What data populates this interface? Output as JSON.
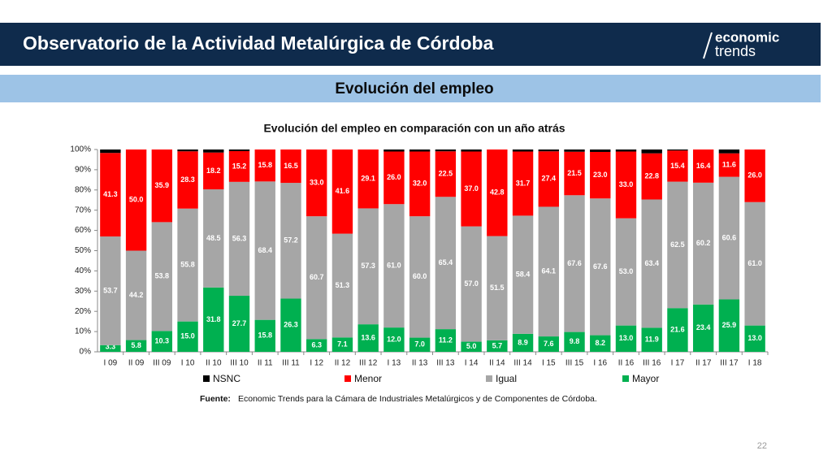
{
  "header": {
    "title": "Observatorio de la Actividad Metalúrgica de Córdoba",
    "logo": [
      "economic",
      "trends"
    ]
  },
  "section_title": "Evolución del empleo",
  "chart_data": {
    "type": "stacked_bar",
    "title": "Evolución del empleo en comparación con un año atrás",
    "categories": [
      "I 09",
      "II 09",
      "III 09",
      "I 10",
      "II 10",
      "III 10",
      "II 11",
      "III 11",
      "I 12",
      "II 12",
      "III 12",
      "I 13",
      "II 13",
      "III 13",
      "I 14",
      "II 14",
      "III 14",
      "I 15",
      "III 15",
      "I 16",
      "II 16",
      "III 16",
      "I 17",
      "II 17",
      "III 17",
      "I 18"
    ],
    "series": [
      {
        "name": "NSNC",
        "color": "#000000",
        "values": [
          1.7,
          0,
          0,
          0.9,
          1.5,
          0.8,
          0,
          0,
          0,
          0,
          0,
          1.0,
          1.0,
          0.9,
          1.0,
          0,
          1.0,
          0.9,
          1.1,
          1.2,
          1.0,
          1.9,
          0.5,
          0,
          1.9,
          0
        ]
      },
      {
        "name": "Menor",
        "color": "#ff0000",
        "values": [
          41.3,
          50.0,
          35.9,
          28.3,
          18.2,
          15.2,
          15.8,
          16.5,
          33.0,
          41.6,
          29.1,
          26.0,
          32.0,
          22.5,
          37.0,
          42.8,
          31.7,
          27.4,
          21.5,
          23.0,
          33.0,
          22.8,
          15.4,
          16.4,
          11.6,
          26.0
        ],
        "value_labels": [
          "41.3",
          "50.0",
          "35.9",
          "28.3",
          "18.2",
          "15.2",
          "15.8",
          "16.5",
          "33.0",
          "41.6",
          "29.1",
          "26.0",
          "32.0",
          "22.5",
          "37.0",
          "42.8",
          "31.7",
          "27.4",
          "21.5",
          "23.0",
          "33.0",
          "22.8",
          "15.4",
          "16.4",
          "11.6",
          "26.0"
        ]
      },
      {
        "name": "Igual",
        "color": "#a6a6a6",
        "values": [
          53.7,
          44.2,
          53.8,
          55.8,
          48.5,
          56.3,
          68.4,
          57.2,
          60.7,
          51.3,
          57.3,
          61.0,
          60.0,
          65.4,
          57.0,
          51.5,
          58.4,
          64.1,
          67.6,
          67.6,
          53.0,
          63.4,
          62.5,
          60.2,
          60.6,
          61.0
        ],
        "value_labels": [
          "53.7",
          "44.2",
          "53.8",
          "55.8",
          "48.5",
          "56.3",
          "68.4",
          "57.2",
          "60.7",
          "51.3",
          "57.3",
          "61.0",
          "60.0",
          "65.4",
          "57.0",
          "51.5",
          "58.4",
          "64.1",
          "67.6",
          "67.6",
          "53.0",
          "63.4",
          "62.5",
          "60.2",
          "60.6",
          "61.0"
        ]
      },
      {
        "name": "Mayor",
        "color": "#00b050",
        "values": [
          3.3,
          5.8,
          10.3,
          15.0,
          31.8,
          27.7,
          15.8,
          26.3,
          6.3,
          7.1,
          13.6,
          12.0,
          7.0,
          11.2,
          5.0,
          5.7,
          8.9,
          7.6,
          9.8,
          8.2,
          13.0,
          11.9,
          21.6,
          23.4,
          25.9,
          13.0
        ],
        "value_labels": [
          "3.3",
          "5.8",
          "10.3",
          "15.0",
          "31.8",
          "27.7",
          "15.8",
          "26.3",
          "6.3",
          "7.1",
          "13.6",
          "12.0",
          "7.0",
          "11.2",
          "5.0",
          "5.7",
          "8.9",
          "7.6",
          "9.8",
          "8.2",
          "13.0",
          "11.9",
          "21.6",
          "23.4",
          "25.9",
          "13.0"
        ]
      }
    ],
    "ylim": [
      0,
      100
    ],
    "yticks": [
      {
        "value": 0,
        "label": "0%"
      },
      {
        "value": 10,
        "label": "10%"
      },
      {
        "value": 20,
        "label": "20%"
      },
      {
        "value": 30,
        "label": "30%"
      },
      {
        "value": 40,
        "label": "40%"
      },
      {
        "value": 50,
        "label": "50%"
      },
      {
        "value": 60,
        "label": "60%"
      },
      {
        "value": 70,
        "label": "70%"
      },
      {
        "value": 80,
        "label": "80%"
      },
      {
        "value": 90,
        "label": "90%"
      },
      {
        "value": 100,
        "label": "100%"
      }
    ],
    "legend": "bottom"
  },
  "source": {
    "label": "Fuente:",
    "text": "Economic Trends para la Cámara de Industriales Metalúrgicos y de Componentes de Córdoba."
  },
  "page_number": "22"
}
